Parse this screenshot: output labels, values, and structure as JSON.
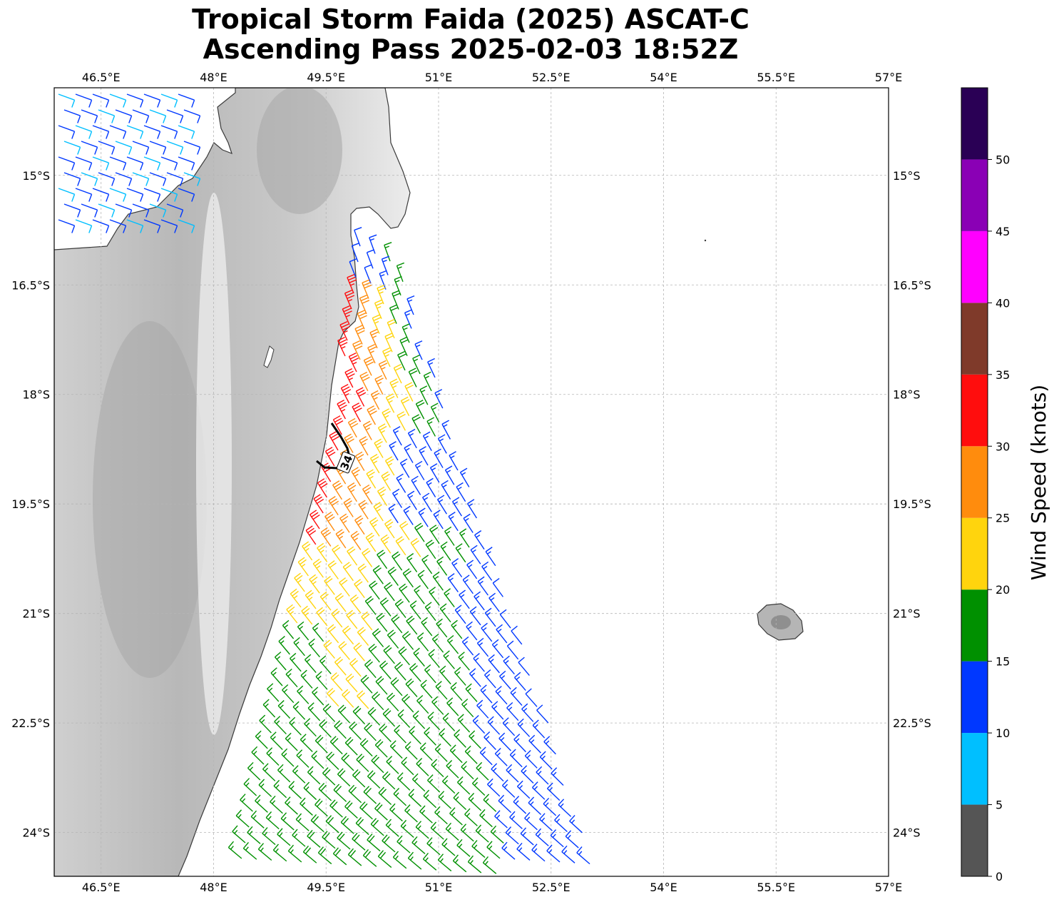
{
  "title": {
    "line1": "Tropical Storm Faida (2025) ASCAT-C",
    "line2": "Ascending Pass 2025-02-03 18:52Z"
  },
  "map": {
    "lon_range": [
      45.875,
      57.0
    ],
    "lat_range": [
      -24.6,
      -13.8
    ],
    "lon_ticks": [
      "46.5°E",
      "48°E",
      "49.5°E",
      "51°E",
      "52.5°E",
      "54°E",
      "55.5°E",
      "57°E"
    ],
    "lat_ticks": [
      "15°S",
      "16.5°S",
      "18°S",
      "19.5°S",
      "21°S",
      "22.5°S",
      "24°S"
    ],
    "grid": true,
    "terrain": "grayscale elevation",
    "contour_label": "34",
    "colors": {
      "coastline": "#3a3a3a",
      "grid": "#b5b5b5",
      "contour": "#000000"
    }
  },
  "colorbar": {
    "label": "Wind Speed (knots)",
    "ticks": [
      "0",
      "5",
      "10",
      "15",
      "20",
      "25",
      "30",
      "35",
      "40",
      "45",
      "50"
    ],
    "bins": [
      {
        "min": 0,
        "max": 5,
        "color": "#555555"
      },
      {
        "min": 5,
        "max": 10,
        "color": "#00bfff"
      },
      {
        "min": 10,
        "max": 15,
        "color": "#0038ff"
      },
      {
        "min": 15,
        "max": 20,
        "color": "#009000"
      },
      {
        "min": 20,
        "max": 25,
        "color": "#ffd40d"
      },
      {
        "min": 25,
        "max": 30,
        "color": "#ff8c0d"
      },
      {
        "min": 30,
        "max": 35,
        "color": "#ff0d0d"
      },
      {
        "min": 35,
        "max": 40,
        "color": "#7f3a2a"
      },
      {
        "min": 40,
        "max": 45,
        "color": "#ff00ff"
      },
      {
        "min": 45,
        "max": 50,
        "color": "#8a00b5"
      },
      {
        "min": 50,
        "max": 55,
        "color": "#2a0055"
      }
    ]
  }
}
